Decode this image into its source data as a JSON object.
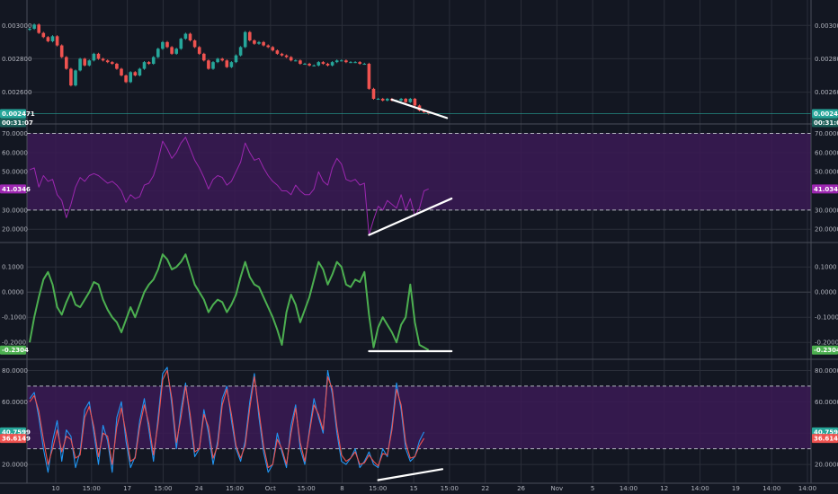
{
  "colors": {
    "background": "#131722",
    "grid": "#2a2e39",
    "separator": "#4a4e59",
    "text": "#b2b5be",
    "candle_up": "#26a69a",
    "candle_down": "#ef5350",
    "rsi_line": "#9c27b0",
    "band_fill": "#3b1a55",
    "ao_line": "#4caf50",
    "stoch_k": "#2196f3",
    "stoch_d": "#ef5350",
    "trendline": "#ffffff",
    "price_badge": "#26a69a",
    "stoch_k_badge": "#26a69a",
    "stoch_d_badge": "#ef5350"
  },
  "x_axis_labels": [
    "10",
    "15:00",
    "17",
    "15:00",
    "24",
    "15:00",
    "Oct",
    "15:00",
    "8",
    "15:00",
    "15",
    "15:00",
    "22",
    "26",
    "Nov",
    "5",
    "14:00",
    "12",
    "14:00",
    "19",
    "14:00",
    "14:00"
  ],
  "badges": {
    "price_value": "0.002471",
    "price_countdown": "00:31:07",
    "rsi_value": "41.0346",
    "ao_value": "-0.2304",
    "stoch_k_value": "40.7599",
    "stoch_d_value": "36.6149"
  },
  "chart_data": [
    {
      "type": "candlestick",
      "title": "",
      "ylim": [
        0.00242,
        0.00312
      ],
      "y_ticks": [
        "0.003000",
        "0.002800",
        "0.002600"
      ],
      "y_tick_values": [
        0.003,
        0.0028,
        0.0026
      ],
      "last_value": 0.002471,
      "series": [
        {
          "name": "",
          "close": [
            0.00298,
            0.003005,
            0.002955,
            0.00293,
            0.002905,
            0.002935,
            0.00288,
            0.00281,
            0.00274,
            0.00264,
            0.00273,
            0.0028,
            0.00276,
            0.00279,
            0.00283,
            0.0028,
            0.00279,
            0.00278,
            0.00277,
            0.00274,
            0.0027,
            0.00266,
            0.00272,
            0.0027,
            0.00274,
            0.00278,
            0.00277,
            0.00281,
            0.00286,
            0.0029,
            0.00287,
            0.00283,
            0.00286,
            0.00292,
            0.00295,
            0.00291,
            0.00287,
            0.00283,
            0.00279,
            0.00274,
            0.00278,
            0.0028,
            0.00279,
            0.00275,
            0.00278,
            0.00282,
            0.00287,
            0.00296,
            0.00291,
            0.00289,
            0.0029,
            0.00288,
            0.00287,
            0.00285,
            0.00283,
            0.00282,
            0.00281,
            0.00279,
            0.00279,
            0.00277,
            0.00277,
            0.00276,
            0.00276,
            0.00278,
            0.00277,
            0.00276,
            0.00278,
            0.00279,
            0.00279,
            0.00278,
            0.00278,
            0.00278,
            0.00277,
            0.00277,
            0.00262,
            0.00256,
            0.00256,
            0.00255,
            0.00256,
            0.00255,
            0.00255,
            0.00256,
            0.00254,
            0.00256,
            0.00252,
            0.00249,
            0.00248,
            0.002471
          ]
        }
      ],
      "trendlines": [
        {
          "from": [
            79,
            0.002555
          ],
          "to": [
            91,
            0.002445
          ]
        }
      ]
    },
    {
      "type": "line",
      "title": "",
      "ylim": [
        14,
        74
      ],
      "y_ticks": [
        "70.0000",
        "60.0000",
        "50.0000",
        "40.0000",
        "30.0000",
        "20.0000"
      ],
      "y_tick_values": [
        70,
        60,
        50,
        40,
        30,
        20
      ],
      "band": [
        30,
        70
      ],
      "last_value": 41.0346,
      "series": [
        {
          "name": "",
          "values": [
            51,
            52,
            42,
            48,
            45,
            46,
            38,
            35,
            26,
            33,
            42,
            47,
            45,
            48,
            49,
            48,
            46,
            44,
            45,
            43,
            40,
            34,
            38,
            36,
            37,
            43,
            44,
            48,
            56,
            66,
            62,
            57,
            60,
            65,
            68,
            62,
            56,
            52,
            47,
            41,
            46,
            48,
            47,
            43,
            45,
            50,
            55,
            65,
            60,
            56,
            57,
            52,
            48,
            45,
            43,
            40,
            40,
            38,
            43,
            40,
            38,
            38,
            41,
            50,
            45,
            43,
            52,
            57,
            54,
            46,
            45,
            46,
            43,
            44,
            17,
            25,
            32,
            30,
            35,
            33,
            31,
            38,
            30,
            36,
            27,
            31,
            40,
            41.0346
          ]
        }
      ],
      "trendlines": [
        {
          "from": [
            74,
            17
          ],
          "to": [
            92,
            36
          ]
        }
      ]
    },
    {
      "type": "line",
      "title": "",
      "ylim": [
        -0.26,
        0.19
      ],
      "y_ticks": [
        "0.1000",
        "0.0000",
        "-0.1000",
        "-0.2000"
      ],
      "y_tick_values": [
        0.1,
        0.0,
        -0.1,
        -0.2
      ],
      "zero_line": 0,
      "last_value": -0.2304,
      "series": [
        {
          "name": "",
          "values": [
            -0.2,
            -0.1,
            -0.02,
            0.05,
            0.08,
            0.03,
            -0.06,
            -0.09,
            -0.04,
            0.0,
            -0.05,
            -0.06,
            -0.03,
            0.0,
            0.04,
            0.03,
            -0.03,
            -0.07,
            -0.1,
            -0.12,
            -0.16,
            -0.11,
            -0.06,
            -0.1,
            -0.05,
            0.0,
            0.03,
            0.05,
            0.09,
            0.15,
            0.13,
            0.09,
            0.1,
            0.12,
            0.15,
            0.09,
            0.03,
            0.0,
            -0.03,
            -0.08,
            -0.05,
            -0.03,
            -0.04,
            -0.08,
            -0.05,
            -0.01,
            0.06,
            0.12,
            0.06,
            0.03,
            0.02,
            -0.02,
            -0.06,
            -0.1,
            -0.15,
            -0.21,
            -0.08,
            -0.01,
            -0.05,
            -0.12,
            -0.07,
            -0.02,
            0.05,
            0.12,
            0.09,
            0.03,
            0.07,
            0.12,
            0.1,
            0.03,
            0.02,
            0.05,
            0.04,
            0.08,
            -0.09,
            -0.22,
            -0.14,
            -0.1,
            -0.13,
            -0.16,
            -0.2,
            -0.13,
            -0.1,
            0.03,
            -0.12,
            -0.21,
            -0.22,
            -0.2304
          ]
        }
      ],
      "trendlines": [
        {
          "from": [
            74,
            -0.235
          ],
          "to": [
            92,
            -0.235
          ]
        }
      ]
    },
    {
      "type": "line",
      "title": "",
      "ylim": [
        8,
        86
      ],
      "y_ticks": [
        "80.0000",
        "60.0000",
        "40.0000",
        "20.0000"
      ],
      "y_tick_values": [
        80,
        60,
        40,
        20
      ],
      "band": [
        30,
        70
      ],
      "last_values": [
        40.7599,
        36.6149
      ],
      "series": [
        {
          "name": "",
          "values": [
            62,
            66,
            50,
            30,
            15,
            35,
            48,
            22,
            42,
            38,
            18,
            28,
            55,
            60,
            40,
            20,
            45,
            35,
            15,
            50,
            60,
            35,
            18,
            25,
            48,
            62,
            42,
            22,
            50,
            78,
            82,
            58,
            30,
            55,
            72,
            48,
            25,
            30,
            55,
            40,
            20,
            35,
            62,
            70,
            48,
            30,
            22,
            35,
            60,
            78,
            50,
            28,
            15,
            20,
            40,
            28,
            18,
            45,
            58,
            30,
            20,
            42,
            62,
            50,
            40,
            80,
            65,
            40,
            22,
            20,
            24,
            30,
            18,
            22,
            28,
            20,
            18,
            30,
            25,
            45,
            72,
            55,
            30,
            22,
            25,
            35,
            40.7599
          ]
        },
        {
          "name": "",
          "values": [
            60,
            64,
            54,
            36,
            20,
            30,
            42,
            28,
            38,
            36,
            24,
            26,
            50,
            57,
            44,
            25,
            40,
            38,
            20,
            44,
            56,
            40,
            22,
            24,
            44,
            58,
            46,
            26,
            46,
            74,
            80,
            62,
            34,
            50,
            70,
            52,
            28,
            30,
            52,
            44,
            24,
            32,
            58,
            68,
            52,
            32,
            24,
            32,
            56,
            76,
            54,
            32,
            18,
            20,
            36,
            30,
            20,
            40,
            56,
            34,
            22,
            40,
            58,
            52,
            42,
            76,
            68,
            44,
            26,
            22,
            24,
            28,
            20,
            21,
            26,
            22,
            19,
            27,
            26,
            42,
            68,
            58,
            34,
            24,
            25,
            32,
            36.6149
          ]
        }
      ],
      "trendlines": [
        {
          "from": [
            76,
            10
          ],
          "to": [
            90,
            17
          ]
        }
      ]
    }
  ]
}
